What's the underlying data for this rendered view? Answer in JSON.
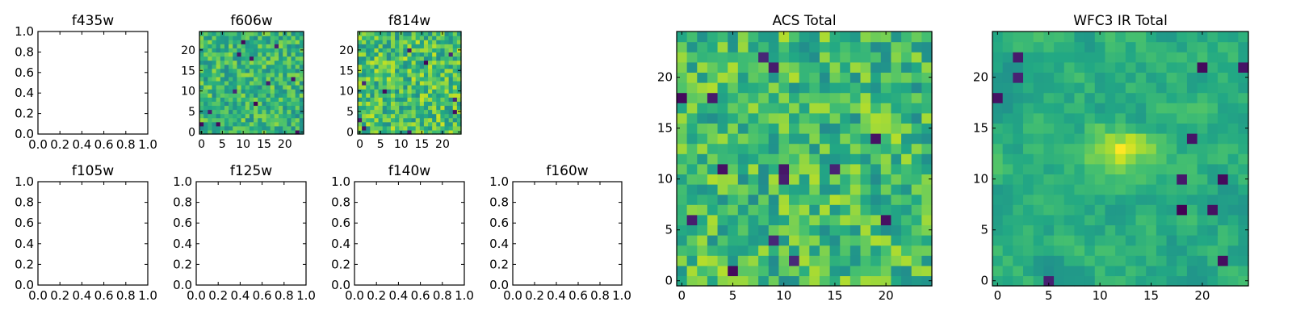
{
  "chart_data": [
    {
      "type": "empty",
      "title": "f435w",
      "xlim": [
        0,
        1
      ],
      "ylim": [
        0,
        1
      ],
      "xticks": [
        "0.0",
        "0.2",
        "0.4",
        "0.6",
        "0.8",
        "1.0"
      ],
      "yticks": [
        "0.0",
        "0.2",
        "0.4",
        "0.6",
        "0.8",
        "1.0"
      ]
    },
    {
      "type": "heatmap",
      "title": "f606w",
      "size": 25,
      "colormap": "viridis",
      "xticks": [
        "0",
        "5",
        "10",
        "15",
        "20"
      ],
      "yticks": [
        "0",
        "5",
        "10",
        "15",
        "20"
      ],
      "seed": 606,
      "style": "noise",
      "base": 0.66,
      "spread": 0.12,
      "dark_cells": 12
    },
    {
      "type": "heatmap",
      "title": "f814w",
      "size": 25,
      "colormap": "viridis",
      "xticks": [
        "0",
        "5",
        "10",
        "15",
        "20"
      ],
      "yticks": [
        "0",
        "5",
        "10",
        "15",
        "20"
      ],
      "seed": 814,
      "style": "noise",
      "base": 0.7,
      "spread": 0.14,
      "dark_cells": 10
    },
    {
      "type": "heatmap",
      "title": "ACS Total",
      "size": 25,
      "colormap": "viridis",
      "xticks": [
        "0",
        "5",
        "10",
        "15",
        "20"
      ],
      "yticks": [
        "0",
        "5",
        "10",
        "15",
        "20"
      ],
      "seed": 2718,
      "style": "noise",
      "base": 0.68,
      "spread": 0.13,
      "dark_cells": 14
    },
    {
      "type": "heatmap",
      "title": "WFC3 IR Total",
      "size": 25,
      "colormap": "viridis",
      "xticks": [
        "0",
        "5",
        "10",
        "15",
        "20"
      ],
      "yticks": [
        "0",
        "5",
        "10",
        "15",
        "20"
      ],
      "seed": 3141,
      "style": "smooth",
      "base": 0.62,
      "spread": 0.1,
      "dark_cells": 12,
      "bright_center": [
        12,
        13
      ]
    },
    {
      "type": "empty",
      "title": "f105w",
      "xlim": [
        0,
        1
      ],
      "ylim": [
        0,
        1
      ],
      "xticks": [
        "0.0",
        "0.2",
        "0.4",
        "0.6",
        "0.8",
        "1.0"
      ],
      "yticks": [
        "0.0",
        "0.2",
        "0.4",
        "0.6",
        "0.8",
        "1.0"
      ]
    },
    {
      "type": "empty",
      "title": "f125w",
      "xlim": [
        0,
        1
      ],
      "ylim": [
        0,
        1
      ],
      "xticks": [
        "0.0",
        "0.2",
        "0.4",
        "0.6",
        "0.8",
        "1.0"
      ],
      "yticks": [
        "0.0",
        "0.2",
        "0.4",
        "0.6",
        "0.8",
        "1.0"
      ]
    },
    {
      "type": "empty",
      "title": "f140w",
      "xlim": [
        0,
        1
      ],
      "ylim": [
        0,
        1
      ],
      "xticks": [
        "0.0",
        "0.2",
        "0.4",
        "0.6",
        "0.8",
        "1.0"
      ],
      "yticks": [
        "0.0",
        "0.2",
        "0.4",
        "0.6",
        "0.8",
        "1.0"
      ]
    },
    {
      "type": "empty",
      "title": "f160w",
      "xlim": [
        0,
        1
      ],
      "ylim": [
        0,
        1
      ],
      "xticks": [
        "0.0",
        "0.2",
        "0.4",
        "0.6",
        "0.8",
        "1.0"
      ],
      "yticks": [
        "0.0",
        "0.2",
        "0.4",
        "0.6",
        "0.8",
        "1.0"
      ]
    }
  ]
}
